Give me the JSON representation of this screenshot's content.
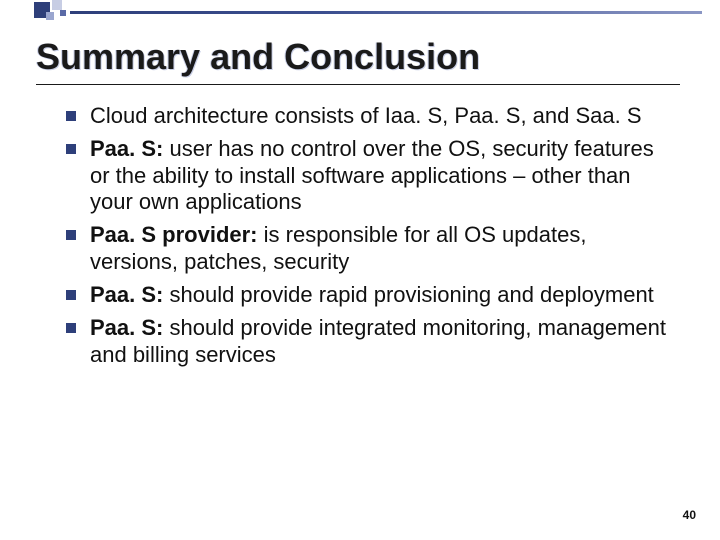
{
  "slide": {
    "title": "Summary and Conclusion",
    "page_number": "40",
    "decor": {
      "accent_dark": "#2e3f7a",
      "accent_mid": "#3b4e8f",
      "accent_light": "#8a96c4",
      "square_light": "#c7cde4"
    },
    "bullets": [
      {
        "bold": "",
        "text": "Cloud architecture consists of Iaa. S, Paa. S, and Saa. S"
      },
      {
        "bold": "Paa. S:",
        "text": " user has no control over the OS, security features or the ability to install software applications – other than your own applications"
      },
      {
        "bold": "Paa. S provider:",
        "text": " is responsible for all OS updates, versions, patches, security"
      },
      {
        "bold": "Paa. S:",
        "text": " should provide rapid provisioning and deployment"
      },
      {
        "bold": "Paa. S:",
        "text": " should provide integrated monitoring, management and billing services"
      }
    ]
  }
}
